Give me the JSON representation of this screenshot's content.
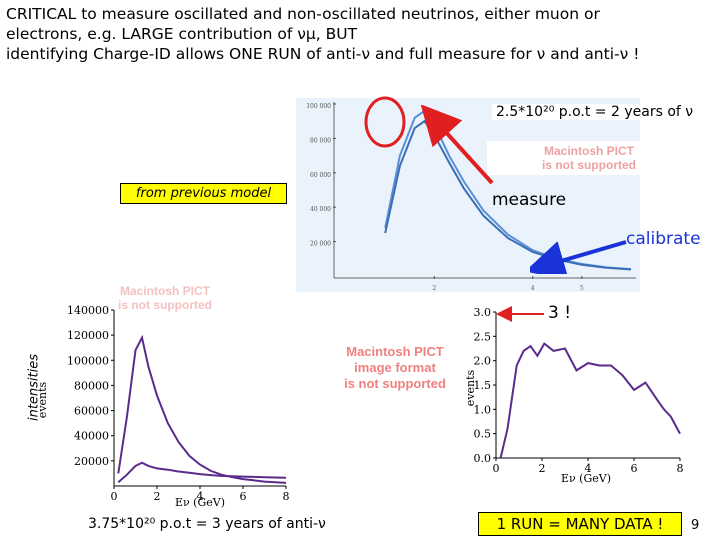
{
  "slide": {
    "title_line1": "CRITICAL to measure oscillated and non-oscillated neutrinos, either muon or",
    "title_line2_pre": "electrons, e.g. LARGE contribution of ",
    "title_line2_nu": "νμ",
    "title_line2_post": ", BUT",
    "title_line3": "identifying Charge-ID allows ONE RUN of anti-ν and full measure for ν and anti-ν !",
    "page_number": "9"
  },
  "annotations": {
    "years_nu": "2.5*10²⁰ p.o.t = 2 years of ν",
    "from_previous_model": "from previous model",
    "measure": "measure",
    "calibrate": "calibrate",
    "three": "3 !",
    "intensities": "intensities",
    "years_antinu": "3.75*10²⁰ p.o.t = 3 years of anti-ν",
    "many_data": "1 RUN = MANY DATA !"
  },
  "pict_placeholder": {
    "line1": "Macintosh PICT",
    "line2": "image format",
    "line3": "is not supported"
  },
  "colors": {
    "arrow_red": "#e02020",
    "arrow_blue": "#1a33d9",
    "curve_blue": "#5b8fd6",
    "curve_purple": "#5a2a8c",
    "highlight": "#ffff00",
    "plot_bg": "#eaf3fb"
  },
  "chart_data": [
    {
      "type": "line",
      "title": "",
      "xlabel": "",
      "ylabel": "",
      "xlim": [
        0,
        6
      ],
      "ylim": [
        0,
        100000
      ],
      "yticks": [
        "100 000",
        "80 000",
        "60 000",
        "40 000",
        "20 000"
      ],
      "xticks": [
        "2",
        "4",
        "5"
      ],
      "series": [
        {
          "x": [
            1.0,
            1.3,
            1.6,
            1.8,
            2.0,
            2.3,
            2.6,
            3.0,
            3.5,
            4.0,
            4.5,
            5.0,
            5.5,
            6.0
          ],
          "values": [
            28000,
            70000,
            92000,
            96000,
            88000,
            70000,
            55000,
            38000,
            24000,
            15000,
            10000,
            7000,
            5000,
            4000
          ]
        },
        {
          "x": [
            1.0,
            1.3,
            1.6,
            1.8,
            2.0,
            2.3,
            2.6,
            3.0,
            3.5,
            4.0,
            4.5,
            5.0,
            5.5,
            6.0
          ],
          "values": [
            25000,
            64000,
            86000,
            90000,
            82000,
            66000,
            51000,
            35000,
            22000,
            14000,
            9500,
            6500,
            4800,
            3800
          ]
        }
      ]
    },
    {
      "type": "line",
      "title": "",
      "xlabel": "Eν (GeV)",
      "ylabel": "events",
      "xlim": [
        0,
        8
      ],
      "ylim": [
        0,
        140000
      ],
      "yticks": [
        "140000",
        "120000",
        "100000",
        "80000",
        "60000",
        "40000",
        "20000"
      ],
      "xticks": [
        "0",
        "2",
        "4",
        "6",
        "8"
      ],
      "series": [
        {
          "x": [
            0.2,
            0.6,
            1.0,
            1.3,
            1.6,
            2.0,
            2.5,
            3.0,
            3.5,
            4.0,
            4.5,
            5.0,
            5.5,
            6.0,
            6.5,
            7.0,
            7.5,
            8.0
          ],
          "values": [
            10000,
            55000,
            108000,
            118000,
            95000,
            72000,
            50000,
            35000,
            24000,
            17000,
            12000,
            9000,
            7000,
            5500,
            4500,
            3500,
            3000,
            2500
          ]
        },
        {
          "x": [
            0.2,
            0.6,
            1.0,
            1.3,
            1.6,
            2.0,
            2.5,
            3.0,
            3.5,
            4.0,
            4.5,
            5.0,
            5.5,
            6.0,
            6.5,
            7.0,
            7.5,
            8.0
          ],
          "values": [
            3000,
            9000,
            16000,
            18500,
            16000,
            14000,
            13000,
            11500,
            10500,
            9500,
            8700,
            8000,
            7800,
            7500,
            7200,
            7000,
            6800,
            6500
          ]
        }
      ]
    },
    {
      "type": "line",
      "title": "",
      "xlabel": "Eν (GeV)",
      "ylabel": "events",
      "xlim": [
        0,
        8
      ],
      "ylim": [
        0,
        3.0
      ],
      "yticks": [
        "3.0",
        "2.5",
        "2.0",
        "1.5",
        "1.0",
        "0.5",
        "0.0"
      ],
      "xticks": [
        "0",
        "2",
        "4",
        "6",
        "8"
      ],
      "series": [
        {
          "x": [
            0.2,
            0.5,
            0.9,
            1.2,
            1.5,
            1.8,
            2.1,
            2.5,
            3.0,
            3.5,
            4.0,
            4.5,
            5.0,
            5.5,
            6.0,
            6.5,
            7.0,
            7.3,
            7.6,
            8.0
          ],
          "values": [
            0.0,
            0.6,
            1.9,
            2.2,
            2.3,
            2.1,
            2.35,
            2.2,
            2.25,
            1.8,
            1.95,
            1.9,
            1.9,
            1.7,
            1.4,
            1.55,
            1.2,
            1.0,
            0.85,
            0.5
          ]
        }
      ]
    }
  ]
}
